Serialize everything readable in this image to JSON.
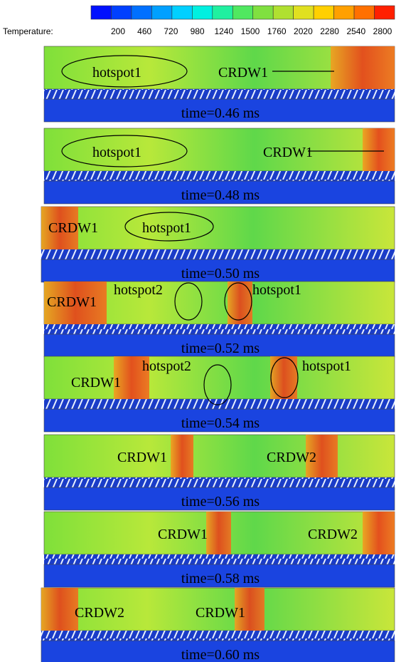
{
  "colorbar": {
    "label": "Temperature:",
    "ticks": [
      200,
      460,
      720,
      980,
      1240,
      1500,
      1760,
      2020,
      2280,
      2540,
      2800
    ]
  },
  "panels": [
    {
      "labels": [
        "hotspot1",
        "CRDW1"
      ],
      "time": "time=0.46 ms"
    },
    {
      "labels": [
        "hotspot1",
        "CRDW1"
      ],
      "time": "time=0.48 ms"
    },
    {
      "labels": [
        "CRDW1",
        "hotspot1"
      ],
      "time": "time=0.50 ms"
    },
    {
      "labels": [
        "CRDW1",
        "hotspot2",
        "hotspot1"
      ],
      "time": "time=0.52 ms"
    },
    {
      "labels": [
        "CRDW1",
        "hotspot2",
        "hotspot1"
      ],
      "time": "time=0.54 ms"
    },
    {
      "labels": [
        "CRDW1",
        "CRDW2"
      ],
      "time": "time=0.56 ms"
    },
    {
      "labels": [
        "CRDW1",
        "CRDW2"
      ],
      "time": "time=0.58 ms"
    },
    {
      "labels": [
        "CRDW2",
        "CRDW1"
      ],
      "time": "time=0.60 ms"
    }
  ]
}
